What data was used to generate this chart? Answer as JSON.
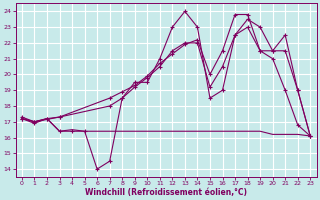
{
  "bg_color": "#c8eaea",
  "grid_color": "#ffffff",
  "line_color": "#800060",
  "xlabel": "Windchill (Refroidissement éolien,°C)",
  "ylim": [
    13.5,
    24.5
  ],
  "xlim": [
    -0.5,
    23.5
  ],
  "yticks": [
    14,
    15,
    16,
    17,
    18,
    19,
    20,
    21,
    22,
    23,
    24
  ],
  "xticks": [
    0,
    1,
    2,
    3,
    4,
    5,
    6,
    7,
    8,
    9,
    10,
    11,
    12,
    13,
    14,
    15,
    16,
    17,
    18,
    19,
    20,
    21,
    22,
    23
  ],
  "series1_x": [
    0,
    1,
    2,
    3,
    4,
    5,
    6,
    7,
    8,
    9,
    10,
    11,
    12,
    13,
    14,
    15,
    16,
    17,
    18,
    19,
    20,
    21,
    22,
    23
  ],
  "series1_y": [
    17.2,
    16.9,
    17.2,
    16.4,
    16.4,
    16.4,
    14.0,
    14.5,
    18.5,
    19.5,
    19.5,
    21.0,
    23.0,
    24.0,
    23.0,
    18.5,
    19.0,
    22.5,
    23.0,
    21.5,
    21.0,
    19.0,
    16.8,
    16.1
  ],
  "series2_x": [
    0,
    1,
    2,
    3,
    4,
    5,
    6,
    7,
    8,
    9,
    10,
    11,
    12,
    13,
    14,
    15,
    16,
    17,
    18,
    19,
    20,
    21,
    22,
    23
  ],
  "series2_y": [
    17.2,
    17.0,
    17.2,
    16.4,
    16.5,
    16.4,
    16.4,
    16.4,
    16.4,
    16.4,
    16.4,
    16.4,
    16.4,
    16.4,
    16.4,
    16.4,
    16.4,
    16.4,
    16.4,
    16.4,
    16.2,
    16.2,
    16.2,
    16.1
  ],
  "series3_x": [
    0,
    1,
    3,
    7,
    8,
    9,
    10,
    11,
    12,
    13,
    14,
    15,
    16,
    17,
    18,
    19,
    20,
    21,
    22,
    23
  ],
  "series3_y": [
    17.3,
    17.0,
    17.3,
    18.0,
    18.5,
    19.2,
    19.8,
    20.5,
    21.5,
    22.0,
    22.0,
    19.2,
    20.5,
    22.5,
    23.5,
    23.0,
    21.5,
    22.5,
    19.0,
    16.1
  ],
  "series4_x": [
    0,
    1,
    2,
    3,
    7,
    8,
    9,
    10,
    11,
    12,
    13,
    14,
    15,
    16,
    17,
    18,
    19,
    20,
    21,
    22,
    23
  ],
  "series4_y": [
    17.2,
    17.0,
    17.2,
    17.3,
    18.5,
    18.9,
    19.3,
    19.9,
    20.7,
    21.3,
    21.9,
    22.2,
    20.0,
    21.5,
    23.8,
    23.8,
    21.5,
    21.5,
    21.5,
    19.0,
    16.1
  ]
}
